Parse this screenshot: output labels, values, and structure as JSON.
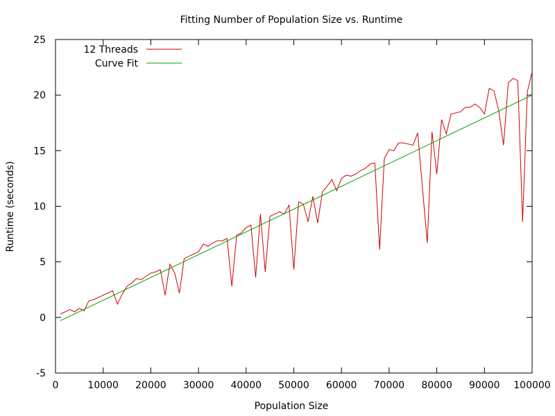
{
  "chart_data": {
    "type": "line",
    "title": "Fitting Number of Population Size vs. Runtime",
    "xlabel": "Population Size",
    "ylabel": "Runtime (seconds)",
    "xlim": [
      0,
      100000
    ],
    "ylim": [
      -5,
      25
    ],
    "xticks": [
      0,
      10000,
      20000,
      30000,
      40000,
      50000,
      60000,
      70000,
      80000,
      90000,
      100000
    ],
    "yticks": [
      -5,
      0,
      5,
      10,
      15,
      20,
      25
    ],
    "grid": false,
    "legend_position": "top-left",
    "series": [
      {
        "name": "12 Threads",
        "color": "#cc0000",
        "x": [
          1000,
          2000,
          3000,
          4000,
          5000,
          6000,
          7000,
          8000,
          9000,
          10000,
          11000,
          12000,
          13000,
          14000,
          15000,
          16000,
          17000,
          18000,
          19000,
          20000,
          21000,
          22000,
          23000,
          24000,
          25000,
          26000,
          27000,
          28000,
          29000,
          30000,
          31000,
          32000,
          33000,
          34000,
          35000,
          36000,
          37000,
          38000,
          39000,
          40000,
          41000,
          42000,
          43000,
          44000,
          45000,
          46000,
          47000,
          48000,
          49000,
          50000,
          51000,
          52000,
          53000,
          54000,
          55000,
          56000,
          57000,
          58000,
          59000,
          60000,
          61000,
          62000,
          63000,
          64000,
          65000,
          66000,
          67000,
          68000,
          69000,
          70000,
          71000,
          72000,
          73000,
          74000,
          75000,
          76000,
          77000,
          78000,
          79000,
          80000,
          81000,
          82000,
          83000,
          84000,
          85000,
          86000,
          87000,
          88000,
          89000,
          90000,
          91000,
          92000,
          93000,
          94000,
          95000,
          96000,
          97000,
          98000,
          99000,
          100000
        ],
        "y": [
          0.3,
          0.5,
          0.7,
          0.5,
          0.8,
          0.6,
          1.5,
          1.6,
          1.8,
          2.0,
          2.2,
          2.4,
          1.2,
          2.1,
          2.8,
          3.1,
          3.5,
          3.4,
          3.7,
          4.0,
          4.1,
          4.3,
          2.0,
          4.8,
          4.0,
          2.2,
          5.3,
          5.5,
          5.7,
          5.9,
          6.6,
          6.4,
          6.7,
          6.9,
          6.9,
          7.1,
          2.8,
          7.4,
          7.6,
          8.1,
          8.3,
          3.6,
          9.3,
          4.1,
          9.1,
          9.3,
          9.5,
          9.3,
          10.1,
          4.3,
          10.4,
          10.2,
          8.6,
          10.9,
          8.5,
          11.3,
          11.8,
          12.4,
          11.4,
          12.5,
          12.8,
          12.7,
          12.9,
          13.2,
          13.4,
          13.8,
          13.9,
          6.1,
          14.3,
          15.1,
          15.0,
          15.7,
          15.7,
          15.6,
          15.5,
          16.6,
          11.6,
          6.7,
          16.7,
          12.9,
          17.8,
          16.5,
          18.3,
          18.4,
          18.5,
          18.9,
          18.9,
          19.2,
          18.9,
          18.3,
          20.6,
          20.4,
          18.6,
          15.5,
          21.1,
          21.5,
          21.3,
          8.6,
          20.3,
          22.1
        ]
      },
      {
        "name": "Curve Fit",
        "color": "#00a000",
        "x": [
          1000,
          100000
        ],
        "y": [
          -0.3,
          20.0
        ]
      }
    ]
  }
}
